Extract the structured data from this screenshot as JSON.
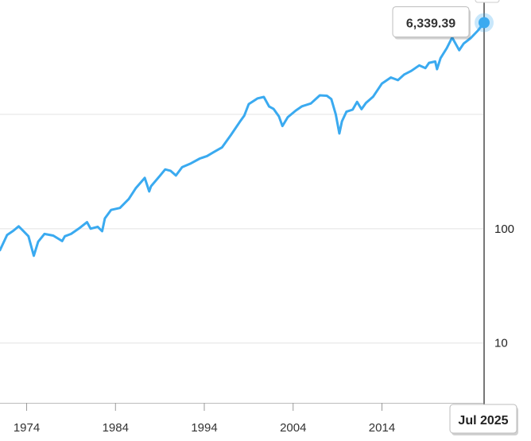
{
  "chart_data": {
    "type": "line",
    "title": "",
    "xlabel": "",
    "ylabel": "",
    "y_scale": "log",
    "xlim": [
      1971.0,
      2025.5
    ],
    "ylim": [
      3,
      10000
    ],
    "x_ticks": [
      {
        "value": 1974,
        "label": "1974"
      },
      {
        "value": 1984,
        "label": "1984"
      },
      {
        "value": 1994,
        "label": "1994"
      },
      {
        "value": 2004,
        "label": "2004"
      },
      {
        "value": 2014,
        "label": "2014"
      }
    ],
    "y_ticks": [
      {
        "value": 10,
        "label": "10"
      },
      {
        "value": 100,
        "label": "100"
      },
      {
        "value": 1000,
        "label": ""
      }
    ],
    "grid": true,
    "series": [
      {
        "color": "#3aaaf0",
        "x": [
          1971.0,
          1971.8,
          1972.5,
          1973.1,
          1973.6,
          1974.2,
          1974.8,
          1975.3,
          1976.0,
          1977.0,
          1978.0,
          1978.3,
          1979.0,
          1980.0,
          1980.8,
          1981.2,
          1982.0,
          1982.5,
          1982.8,
          1983.5,
          1984.5,
          1985.5,
          1986.3,
          1987.3,
          1987.8,
          1988.0,
          1989.0,
          1989.6,
          1990.2,
          1990.8,
          1991.5,
          1992.5,
          1993.5,
          1994.3,
          1995.0,
          1996.0,
          1997.0,
          1998.0,
          1998.5,
          1999.0,
          2000.0,
          2000.7,
          2001.3,
          2001.8,
          2002.4,
          2002.8,
          2003.4,
          2004.3,
          2005.0,
          2006.0,
          2007.0,
          2007.8,
          2008.3,
          2008.8,
          2009.2,
          2009.5,
          2010.0,
          2010.7,
          2011.2,
          2011.7,
          2012.2,
          2013.0,
          2014.0,
          2015.0,
          2015.8,
          2016.5,
          2017.3,
          2018.2,
          2018.9,
          2019.3,
          2020.0,
          2020.2,
          2020.6,
          2021.3,
          2021.9,
          2022.7,
          2023.2,
          2024.0,
          2024.8,
          2025.5
        ],
        "values": [
          65,
          88,
          96,
          105,
          96,
          86,
          58,
          77,
          90,
          87,
          78,
          86,
          90,
          102,
          114,
          100,
          104,
          95,
          123,
          146,
          152,
          182,
          227,
          278,
          212,
          235,
          290,
          330,
          321,
          292,
          345,
          373,
          411,
          432,
          465,
          515,
          660,
          860,
          975,
          1230,
          1380,
          1420,
          1170,
          1115,
          960,
          790,
          945,
          1080,
          1175,
          1245,
          1465,
          1455,
          1360,
          1000,
          680,
          870,
          1055,
          1100,
          1285,
          1110,
          1260,
          1425,
          1860,
          2100,
          1990,
          2230,
          2400,
          2680,
          2540,
          2820,
          2900,
          2480,
          3100,
          3800,
          4700,
          3640,
          4160,
          4650,
          5400,
          6339.39
        ]
      }
    ],
    "crosshair": {
      "x": 2025.5,
      "date_label": "Jul 2025",
      "value_label": "6,339.39"
    }
  }
}
